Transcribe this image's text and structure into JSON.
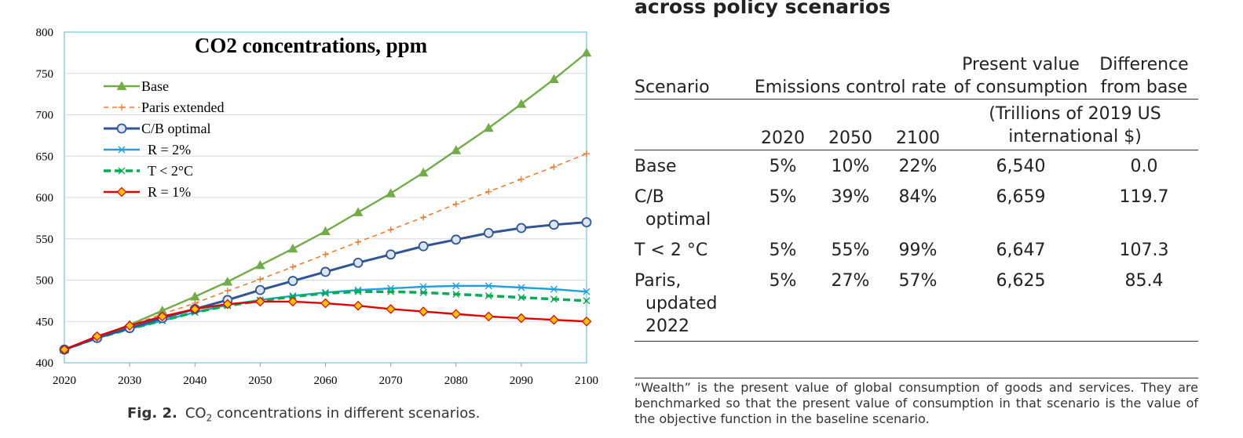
{
  "chart_data": {
    "type": "line",
    "title": "CO2 concentrations, ppm",
    "xlabel": "",
    "ylabel": "",
    "xlim": [
      2020,
      2100
    ],
    "ylim": [
      400,
      800
    ],
    "x_ticks": [
      "2020",
      "2030",
      "2040",
      "2050",
      "2060",
      "2070",
      "2080",
      "2090",
      "2100"
    ],
    "y_ticks": [
      "400",
      "450",
      "500",
      "550",
      "600",
      "650",
      "700",
      "750",
      "800"
    ],
    "grid": "horizontal",
    "legend_position": "top-left",
    "x": [
      2020,
      2025,
      2030,
      2035,
      2040,
      2045,
      2050,
      2055,
      2060,
      2065,
      2070,
      2075,
      2080,
      2085,
      2090,
      2095,
      2100
    ],
    "series": [
      {
        "name": "Base",
        "color": "#70ad47",
        "marker": "triangle",
        "dash": "solid",
        "values": [
          416,
          431,
          446,
          463,
          480,
          498,
          518,
          538,
          559,
          582,
          605,
          630,
          657,
          684,
          713,
          743,
          775
        ]
      },
      {
        "name": "Paris extended",
        "color": "#ed7d31",
        "marker": "plus",
        "dash": "dashed",
        "values": [
          416,
          431,
          445,
          459,
          472,
          487,
          501,
          516,
          531,
          546,
          561,
          576,
          592,
          607,
          622,
          637,
          653
        ]
      },
      {
        "name": "C/B optimal",
        "color": "#2f5597",
        "marker": "circle",
        "dash": "solid",
        "values": [
          416,
          430,
          442,
          454,
          465,
          476,
          488,
          499,
          510,
          521,
          531,
          541,
          549,
          557,
          563,
          567,
          570
        ]
      },
      {
        "name": "R = 2%",
        "color": "#1ba1e2",
        "marker": "x",
        "dash": "solid",
        "values": [
          416,
          430,
          441,
          451,
          461,
          470,
          476,
          481,
          485,
          488,
          490,
          492,
          493,
          493,
          491,
          489,
          486
        ]
      },
      {
        "name": "T < 2°C",
        "color": "#00b050",
        "marker": "x",
        "dash": "dashed",
        "values": [
          416,
          430,
          441,
          451,
          461,
          469,
          475,
          480,
          484,
          486,
          486,
          485,
          483,
          481,
          479,
          477,
          475
        ]
      },
      {
        "name": "R = 1%",
        "color": "#e00000",
        "marker": "diamond",
        "dash": "solid",
        "values": [
          416,
          432,
          445,
          456,
          465,
          471,
          474,
          474,
          472,
          469,
          465,
          462,
          459,
          456,
          454,
          452,
          450
        ]
      }
    ]
  },
  "caption": {
    "label": "Fig. 2.",
    "text_pre": "CO",
    "text_sub": "2",
    "text_post": " concentrations in different scenarios."
  },
  "table": {
    "title": "across policy scenarios",
    "headers": {
      "scenario": "Scenario",
      "control_rate": "Emissions control rate",
      "present_value": "Present value of consumption",
      "difference": "Difference from base"
    },
    "years": [
      "2020",
      "2050",
      "2100"
    ],
    "units": "(Trillions of 2019 US international $)",
    "rows": [
      {
        "name_line1": "Base",
        "name_line2": "",
        "name_line3": "",
        "r2020": "5%",
        "r2050": "10%",
        "r2100": "22%",
        "pv": "6,540",
        "diff": "0.0"
      },
      {
        "name_line1": "C/B",
        "name_line2": "optimal",
        "name_line3": "",
        "r2020": "5%",
        "r2050": "39%",
        "r2100": "84%",
        "pv": "6,659",
        "diff": "119.7"
      },
      {
        "name_line1": "T < 2 °C",
        "name_line2": "",
        "name_line3": "",
        "r2020": "5%",
        "r2050": "55%",
        "r2100": "99%",
        "pv": "6,647",
        "diff": "107.3"
      },
      {
        "name_line1": "Paris,",
        "name_line2": "updated",
        "name_line3": "2022",
        "r2020": "5%",
        "r2050": "27%",
        "r2100": "57%",
        "pv": "6,625",
        "diff": "85.4"
      }
    ],
    "note": "“Wealth” is the present value of global consumption of goods and services. They are benchmarked so that the present value of consumption in that scenario is the value of the objective function in the baseline scenario."
  }
}
